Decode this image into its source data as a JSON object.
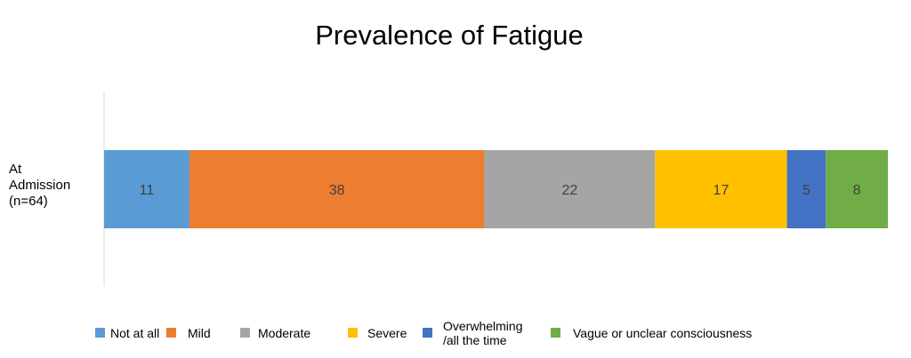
{
  "chart_data": {
    "type": "bar",
    "orientation": "horizontal",
    "stacked": true,
    "title": "Prevalence of Fatigue",
    "categories": [
      "At\nAdmission\n(n=64)"
    ],
    "series": [
      {
        "name": "Not at all",
        "values": [
          11
        ],
        "color": "#5b9bd5"
      },
      {
        "name": "Mild",
        "values": [
          38
        ],
        "color": "#ed7d31"
      },
      {
        "name": "Moderate",
        "values": [
          22
        ],
        "color": "#a5a5a5"
      },
      {
        "name": "Severe",
        "values": [
          17
        ],
        "color": "#ffc000"
      },
      {
        "name": "Overwhelming\n/all the time",
        "values": [
          5
        ],
        "color": "#4472c4"
      },
      {
        "name": "Vague or unclear consciousness",
        "values": [
          8
        ],
        "color": "#70ad47"
      }
    ],
    "legend_position": "bottom",
    "grid": false
  }
}
